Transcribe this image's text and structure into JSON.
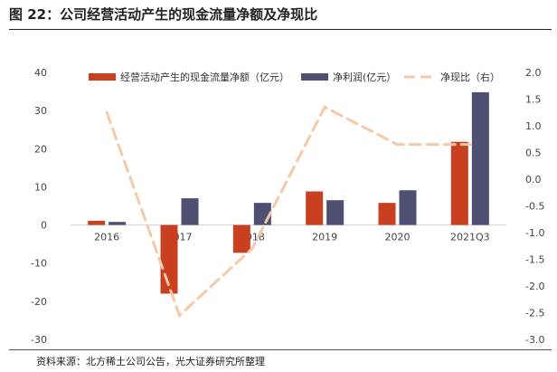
{
  "figure": {
    "title": "图 22：公司经营活动产生的现金流量净额及净现比",
    "source": "资料来源：北方稀土公司公告，光大证券研究所整理"
  },
  "chart_data": {
    "type": "bar",
    "categories": [
      "2016",
      "2017",
      "2018",
      "2019",
      "2020",
      "2021Q3"
    ],
    "series": [
      {
        "name": "经营活动产生的现金流量净额（亿元）",
        "kind": "bar",
        "axis": "left",
        "color": "#c8401f",
        "values": [
          1.1,
          -18.0,
          -7.3,
          8.8,
          5.8,
          21.8
        ]
      },
      {
        "name": "净利润(亿元）",
        "kind": "bar",
        "axis": "left",
        "color": "#4f4f72",
        "values": [
          0.8,
          7.0,
          5.8,
          6.5,
          9.1,
          34.8
        ]
      },
      {
        "name": "净现比（右）",
        "kind": "line",
        "axis": "right",
        "color": "#f5c8a8",
        "dashed": true,
        "values": [
          1.25,
          -2.55,
          -1.3,
          1.35,
          0.65,
          0.65
        ]
      }
    ],
    "y_left": {
      "min": -30,
      "max": 40,
      "ticks": [
        40,
        30,
        20,
        10,
        0,
        -10,
        -20,
        -30
      ]
    },
    "y_right": {
      "min": -3.0,
      "max": 2.0,
      "ticks": [
        2.0,
        1.5,
        1.0,
        0.5,
        0.0,
        -0.5,
        -1.0,
        -1.5,
        -2.0,
        -2.5,
        -3.0
      ],
      "tick_labels": [
        "2.0",
        "1.5",
        "1.0",
        "0.5",
        "0.0",
        "-0.5",
        "-1.0",
        "-1.5",
        "-2.0",
        "-2.5",
        "-3.0"
      ]
    },
    "legend_position": "top",
    "grid": false
  }
}
